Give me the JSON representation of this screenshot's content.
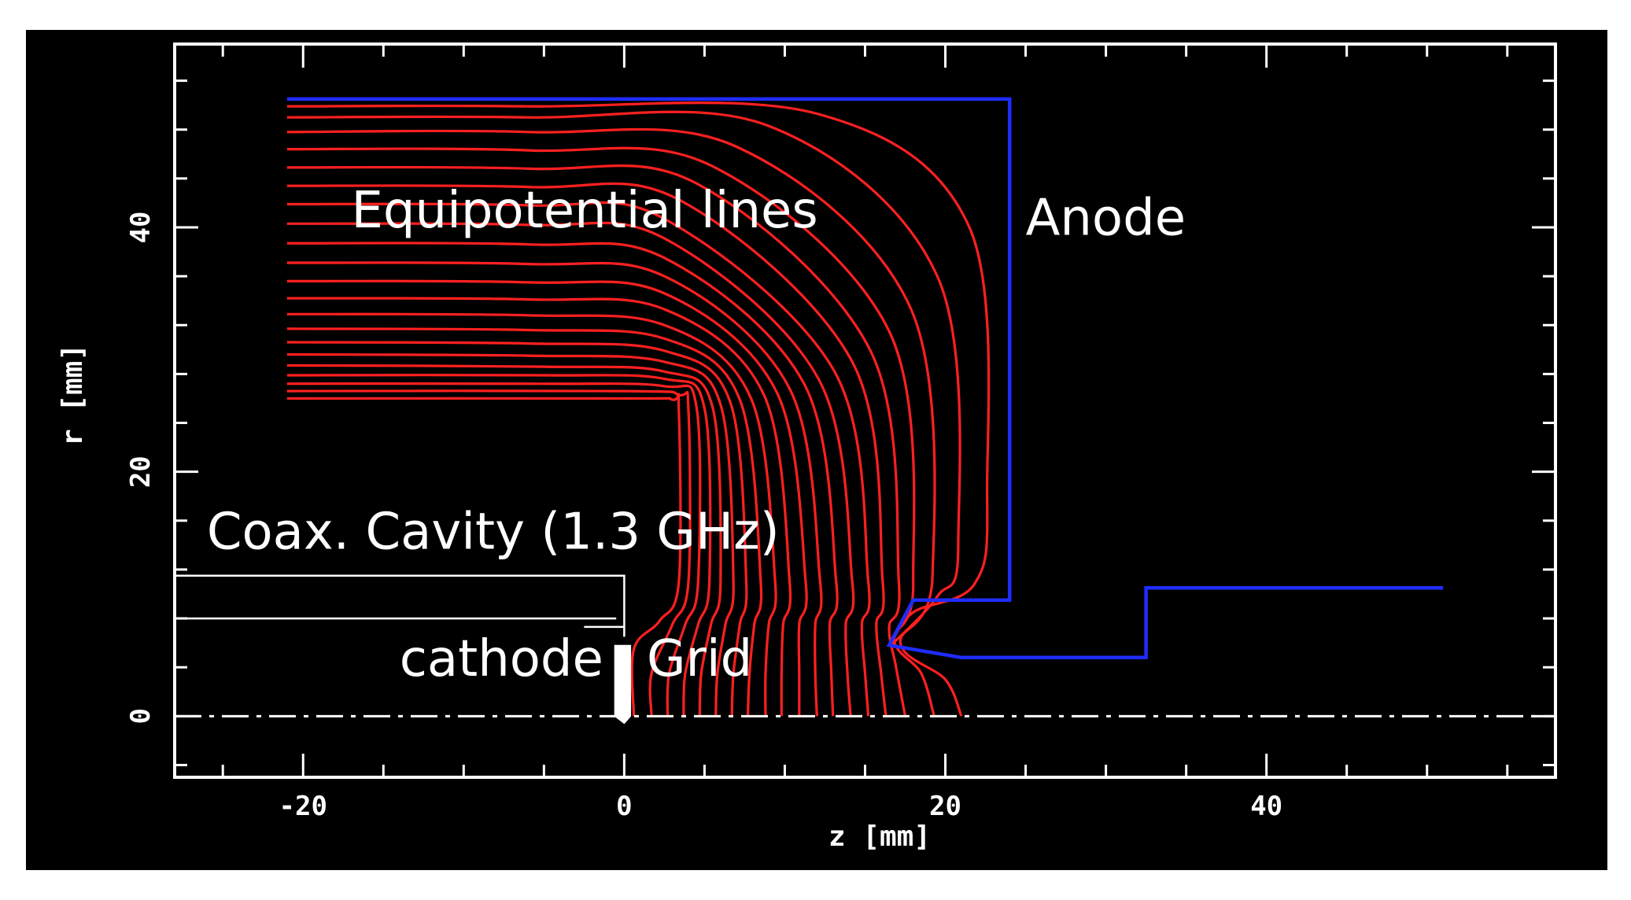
{
  "colors": {
    "background": "#000000",
    "frame": "#ffffff",
    "equipotential": "#ff2020",
    "anode": "#1f2cff",
    "cavity": "#ffffff"
  },
  "chart_data": {
    "type": "line",
    "xlabel": "z [mm]",
    "ylabel": "r [mm]",
    "xlim": [
      -28,
      58
    ],
    "ylim": [
      -5,
      55
    ],
    "x_ticks": [
      {
        "value": -20,
        "label": "-20"
      },
      {
        "value": 0,
        "label": "0"
      },
      {
        "value": 20,
        "label": "20"
      },
      {
        "value": 40,
        "label": "40"
      }
    ],
    "y_ticks": [
      {
        "value": 0,
        "label": "0"
      },
      {
        "value": 20,
        "label": "20"
      },
      {
        "value": 40,
        "label": "40"
      }
    ],
    "annotations": [
      {
        "text": "Equipotential lines",
        "x": -17,
        "y": 40
      },
      {
        "text": "Anode",
        "x": 25,
        "y": 39.4
      },
      {
        "text": "Coax. Cavity (1.3 GHz)",
        "x": -26,
        "y": 13.7
      },
      {
        "text": "cathode",
        "x": -14,
        "y": 3.3
      },
      {
        "text": "Grid",
        "x": 1.4,
        "y": 3.3
      }
    ],
    "anode_outline": [
      [
        -21,
        50.5
      ],
      [
        24,
        50.5
      ],
      [
        24,
        9.5
      ],
      [
        18,
        9.5
      ],
      [
        16.5,
        5.8
      ],
      [
        21,
        4.8
      ],
      [
        32.5,
        4.8
      ],
      [
        32.5,
        10.5
      ],
      [
        51,
        10.5
      ]
    ],
    "cavity_lines": [
      {
        "points": [
          [
            -28,
            11.5
          ],
          [
            0,
            11.5
          ],
          [
            0,
            6.5
          ]
        ]
      },
      {
        "points": [
          [
            -28,
            8
          ],
          [
            -0.5,
            8
          ]
        ]
      },
      {
        "points": [
          [
            -2.5,
            7.3
          ],
          [
            0,
            7.3
          ]
        ]
      }
    ],
    "cathode_tip": [
      [
        -0.6,
        5.8
      ],
      [
        0.4,
        5.8
      ],
      [
        0.4,
        0
      ],
      [
        0,
        -0.6
      ],
      [
        -0.6,
        0
      ]
    ],
    "axis_line": {
      "y": 0,
      "style": "dash-dot"
    },
    "equipotential_lines": [
      {
        "level": 1,
        "points": [
          [
            -21,
            26
          ],
          [
            0,
            26
          ],
          [
            3,
            25.9
          ],
          [
            3.4,
            25
          ],
          [
            3.4,
            11
          ],
          [
            2.2,
            7.8
          ],
          [
            0.6,
            5.5
          ],
          [
            0.6,
            0
          ]
        ]
      },
      {
        "level": 2,
        "points": [
          [
            -21,
            26.6
          ],
          [
            0,
            26.6
          ],
          [
            3.4,
            26.3
          ],
          [
            4.0,
            25
          ],
          [
            4.0,
            11
          ],
          [
            3.0,
            7.5
          ],
          [
            1.7,
            3.5
          ],
          [
            1.7,
            0
          ]
        ]
      },
      {
        "level": 3,
        "points": [
          [
            -21,
            27.2
          ],
          [
            -5,
            27.2
          ],
          [
            2.5,
            27
          ],
          [
            4.5,
            25.3
          ],
          [
            4.6,
            11
          ],
          [
            3.8,
            7.5
          ],
          [
            2.8,
            3.5
          ],
          [
            2.7,
            0
          ]
        ]
      },
      {
        "level": 4,
        "points": [
          [
            -21,
            27.9
          ],
          [
            -5,
            27.9
          ],
          [
            2.5,
            27.6
          ],
          [
            5.0,
            25.2
          ],
          [
            5.3,
            11
          ],
          [
            4.6,
            7.5
          ],
          [
            3.8,
            3.5
          ],
          [
            3.7,
            0
          ]
        ]
      },
      {
        "level": 5,
        "points": [
          [
            -21,
            28.7
          ],
          [
            -5,
            28.6
          ],
          [
            2.5,
            28.2
          ],
          [
            5.5,
            25.3
          ],
          [
            6.0,
            11
          ],
          [
            5.4,
            7.5
          ],
          [
            4.8,
            3.5
          ],
          [
            4.7,
            0
          ]
        ]
      },
      {
        "level": 6,
        "points": [
          [
            -21,
            29.6
          ],
          [
            -6,
            29.5
          ],
          [
            2.5,
            29.0
          ],
          [
            6.0,
            25.5
          ],
          [
            6.8,
            11
          ],
          [
            6.3,
            7.5
          ],
          [
            5.8,
            3.5
          ],
          [
            5.7,
            0
          ]
        ]
      },
      {
        "level": 7,
        "points": [
          [
            -21,
            30.6
          ],
          [
            -6,
            30.5
          ],
          [
            2.5,
            29.9
          ],
          [
            6.6,
            25.7
          ],
          [
            7.6,
            11
          ],
          [
            7.2,
            7.5
          ],
          [
            6.8,
            3.5
          ],
          [
            6.7,
            0
          ]
        ]
      },
      {
        "level": 8,
        "points": [
          [
            -21,
            31.7
          ],
          [
            -6,
            31.6
          ],
          [
            2.5,
            30.9
          ],
          [
            7.2,
            25.9
          ],
          [
            8.5,
            11
          ],
          [
            8.1,
            7.5
          ],
          [
            7.8,
            3.5
          ],
          [
            7.7,
            0
          ]
        ]
      },
      {
        "level": 9,
        "points": [
          [
            -21,
            32.9
          ],
          [
            -6,
            32.8
          ],
          [
            2.5,
            32.0
          ],
          [
            7.9,
            26.0
          ],
          [
            9.4,
            11
          ],
          [
            9.0,
            7.5
          ],
          [
            8.8,
            3.5
          ],
          [
            8.8,
            0
          ]
        ]
      },
      {
        "level": 10,
        "points": [
          [
            -21,
            34.2
          ],
          [
            -6,
            34.1
          ],
          [
            2.5,
            33.3
          ],
          [
            8.7,
            26.3
          ],
          [
            10.3,
            11
          ],
          [
            9.9,
            7.5
          ],
          [
            9.8,
            3.5
          ],
          [
            9.8,
            0
          ]
        ]
      },
      {
        "level": 11,
        "points": [
          [
            -21,
            35.6
          ],
          [
            -6,
            35.5
          ],
          [
            2.5,
            34.6
          ],
          [
            9.5,
            26.5
          ],
          [
            11.3,
            11
          ],
          [
            10.9,
            7.5
          ],
          [
            10.9,
            3.5
          ],
          [
            10.9,
            0
          ]
        ]
      },
      {
        "level": 12,
        "points": [
          [
            -21,
            37.1
          ],
          [
            -6,
            37.0
          ],
          [
            2.5,
            36.0
          ],
          [
            10.3,
            26.8
          ],
          [
            12.2,
            11
          ],
          [
            11.9,
            7.5
          ],
          [
            11.9,
            3.5
          ],
          [
            12.0,
            0
          ]
        ]
      },
      {
        "level": 13,
        "points": [
          [
            -21,
            38.7
          ],
          [
            -6,
            38.6
          ],
          [
            2.5,
            37.5
          ],
          [
            11.2,
            27.2
          ],
          [
            13.2,
            11
          ],
          [
            12.8,
            7.5
          ],
          [
            12.9,
            3.5
          ],
          [
            13.0,
            0
          ]
        ]
      },
      {
        "level": 14,
        "points": [
          [
            -21,
            40.3
          ],
          [
            -6,
            40.2
          ],
          [
            2.5,
            39.1
          ],
          [
            12.1,
            27.6
          ],
          [
            14.2,
            11
          ],
          [
            13.8,
            7.5
          ],
          [
            13.9,
            3.5
          ],
          [
            14.1,
            0
          ]
        ]
      },
      {
        "level": 15,
        "points": [
          [
            -21,
            41.9
          ],
          [
            -6,
            41.8
          ],
          [
            2.5,
            40.7
          ],
          [
            13.1,
            28.2
          ],
          [
            15.2,
            11
          ],
          [
            14.8,
            7.5
          ],
          [
            15.0,
            3.5
          ],
          [
            15.2,
            0
          ]
        ]
      },
      {
        "level": 16,
        "points": [
          [
            -21,
            43.4
          ],
          [
            -6,
            43.3
          ],
          [
            3.5,
            42.2
          ],
          [
            14.2,
            29.0
          ],
          [
            16.1,
            11
          ],
          [
            15.7,
            7.5
          ],
          [
            16.0,
            3.5
          ],
          [
            16.3,
            0
          ]
        ]
      },
      {
        "level": 17,
        "points": [
          [
            -21,
            44.9
          ],
          [
            -6,
            44.8
          ],
          [
            4.5,
            43.6
          ],
          [
            15.3,
            30.0
          ],
          [
            17.1,
            11
          ],
          [
            16.5,
            7.3
          ],
          [
            16.9,
            4.2
          ],
          [
            17.5,
            0
          ]
        ]
      },
      {
        "level": 18,
        "points": [
          [
            -21,
            46.4
          ],
          [
            -6,
            46.3
          ],
          [
            5.5,
            45.0
          ],
          [
            16.5,
            31.5
          ],
          [
            18.0,
            11
          ],
          [
            16.8,
            6.3
          ],
          [
            18.5,
            3.5
          ],
          [
            19.3,
            0
          ]
        ]
      },
      {
        "level": 19,
        "points": [
          [
            -21,
            47.8
          ],
          [
            -6,
            47.8
          ],
          [
            7.0,
            46.6
          ],
          [
            17.8,
            33.5
          ],
          [
            19.2,
            11.5
          ],
          [
            17.2,
            6.0
          ],
          [
            20.0,
            3.0
          ],
          [
            21.0,
            0
          ]
        ]
      },
      {
        "level": 20,
        "points": [
          [
            -21,
            49.0
          ],
          [
            -6,
            49.0
          ],
          [
            9.0,
            48.3
          ],
          [
            19.5,
            36.0
          ],
          [
            20.8,
            14
          ],
          [
            19.5,
            9.8
          ],
          [
            16.7,
            5.9
          ]
        ]
      },
      {
        "level": 21,
        "points": [
          [
            -21,
            49.9
          ],
          [
            -6,
            49.9
          ],
          [
            12,
            49.3
          ],
          [
            21.5,
            40.0
          ],
          [
            22.6,
            18
          ],
          [
            21.8,
            10.8
          ],
          [
            18.0,
            8.5
          ],
          [
            16.6,
            5.9
          ]
        ]
      }
    ]
  }
}
